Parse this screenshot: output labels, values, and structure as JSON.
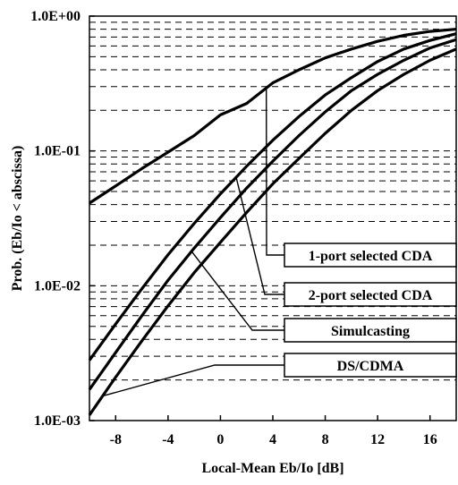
{
  "chart_data": {
    "type": "line",
    "title": "",
    "xlabel": "Local-Mean Eb/Io [dB]",
    "ylabel": "Prob. (Eb/Io < abscissa)",
    "xlim": [
      -10,
      18
    ],
    "ylim": [
      0.001,
      1.0
    ],
    "yscale": "log",
    "grid": "horizontal dashed",
    "x_ticks": [
      -8,
      -4,
      0,
      4,
      8,
      12,
      16
    ],
    "x_tick_labels": [
      "-8",
      "-4",
      "0",
      "4",
      "8",
      "12",
      "16"
    ],
    "y_ticks": [
      0.001,
      0.01,
      0.1,
      1.0
    ],
    "y_tick_labels": [
      "1.0E-03",
      "1.0E-02",
      "1.0E-01",
      "1.0E+00"
    ],
    "series": [
      {
        "name": "1-port selected CDA",
        "x": [
          -10,
          -8,
          -6,
          -4,
          -2,
          0,
          2,
          4,
          6,
          8,
          10,
          12,
          14,
          16,
          18
        ],
        "values": [
          0.041,
          0.055,
          0.074,
          0.098,
          0.13,
          0.185,
          0.225,
          0.32,
          0.4,
          0.49,
          0.57,
          0.65,
          0.72,
          0.77,
          0.8
        ]
      },
      {
        "name": "2-port selected CDA",
        "x": [
          -10,
          -8,
          -6,
          -4,
          -2,
          0,
          2,
          4,
          6,
          8,
          10,
          12,
          14,
          16,
          18
        ],
        "values": [
          0.0028,
          0.0052,
          0.0095,
          0.017,
          0.029,
          0.048,
          0.077,
          0.12,
          0.18,
          0.26,
          0.35,
          0.46,
          0.57,
          0.66,
          0.74
        ]
      },
      {
        "name": "Simulcasting",
        "x": [
          -10,
          -8,
          -6,
          -4,
          -2,
          0,
          2,
          4,
          6,
          8,
          10,
          12,
          14,
          16,
          18
        ],
        "values": [
          0.0017,
          0.0032,
          0.006,
          0.011,
          0.019,
          0.032,
          0.053,
          0.084,
          0.13,
          0.195,
          0.28,
          0.37,
          0.47,
          0.58,
          0.67
        ]
      },
      {
        "name": "DS/CDMA",
        "x": [
          -10,
          -8,
          -6,
          -4,
          -2,
          0,
          2,
          4,
          6,
          8,
          10,
          12,
          14,
          16,
          18
        ],
        "values": [
          0.0011,
          0.0021,
          0.0039,
          0.0071,
          0.0125,
          0.021,
          0.035,
          0.057,
          0.088,
          0.135,
          0.2,
          0.28,
          0.37,
          0.47,
          0.57
        ]
      }
    ],
    "legend": {
      "placement": "lower-right boxes with leader lines"
    },
    "colors": {
      "line": "#000000",
      "grid": "#000000",
      "background": "#ffffff"
    }
  }
}
